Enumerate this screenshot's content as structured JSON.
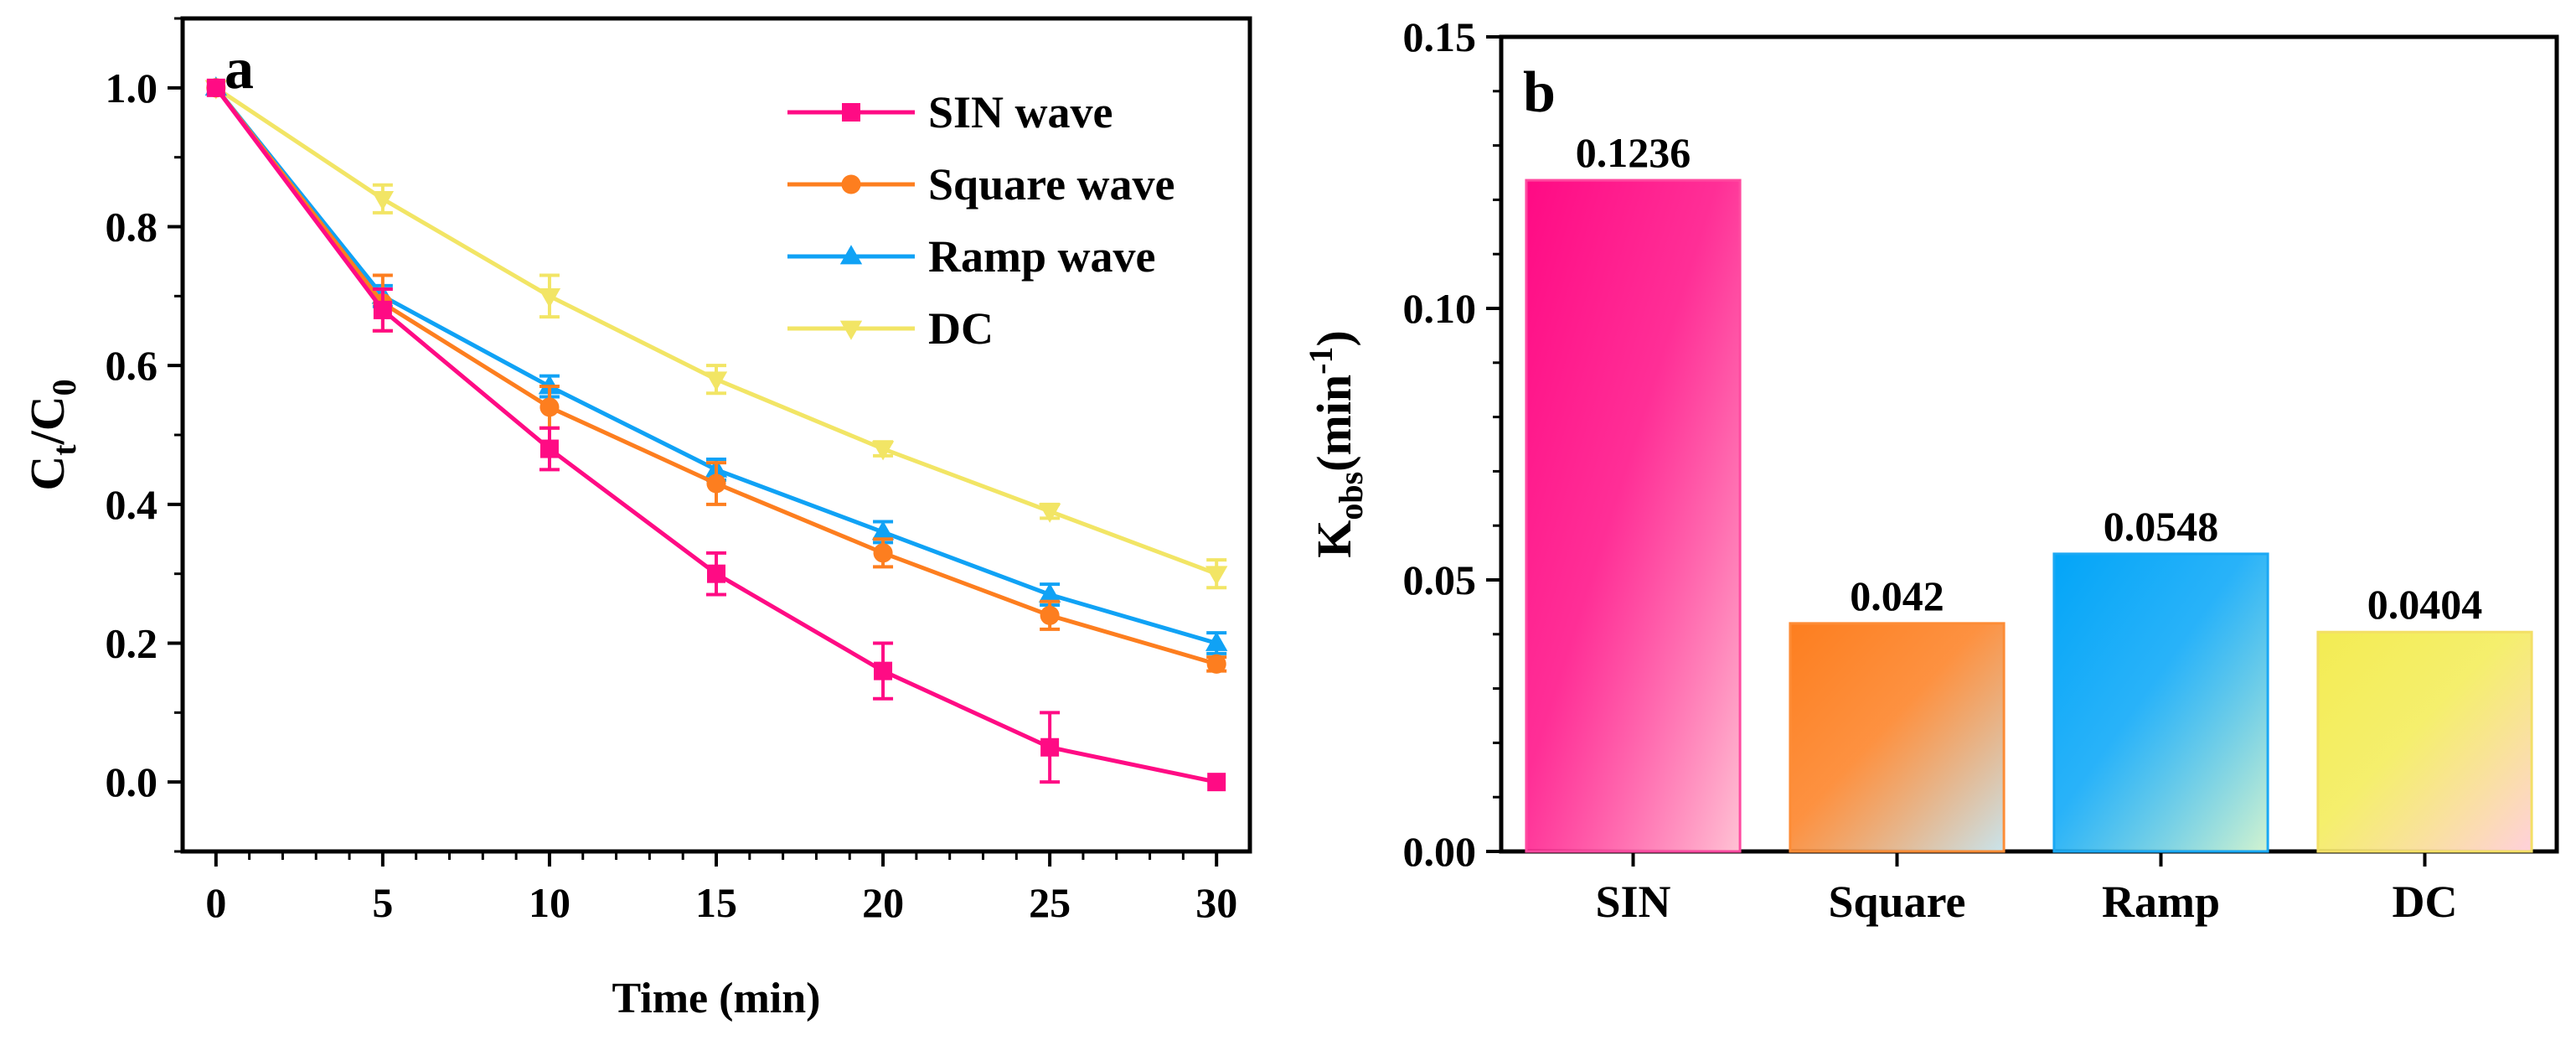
{
  "chart_data": [
    {
      "type": "line",
      "panel_label": "a",
      "xlabel": "Time (min)",
      "ylabel_main": "C",
      "ylabel_sub1": "t",
      "ylabel_slash": "/C",
      "ylabel_sub2": "0",
      "xlim": [
        -1,
        31
      ],
      "ylim": [
        -0.1,
        1.1
      ],
      "x": [
        0,
        5,
        10,
        15,
        20,
        25,
        30
      ],
      "xticks": [
        0,
        5,
        10,
        15,
        20,
        25,
        30
      ],
      "xtick_labels": [
        "0",
        "5",
        "10",
        "15",
        "20",
        "25",
        "30"
      ],
      "yticks": [
        0.0,
        0.2,
        0.4,
        0.6,
        0.8,
        1.0
      ],
      "ytick_labels": [
        "0.0",
        "0.2",
        "0.4",
        "0.6",
        "0.8",
        "1.0"
      ],
      "legend_position": "top-right",
      "series": [
        {
          "name": "SIN wave",
          "color": "#ff0b84",
          "marker": "square",
          "values": [
            1.0,
            0.68,
            0.48,
            0.3,
            0.16,
            0.05,
            0.0
          ],
          "errors": [
            0.0,
            0.03,
            0.03,
            0.03,
            0.04,
            0.05,
            0.0
          ]
        },
        {
          "name": "Square wave",
          "color": "#fd7e1f",
          "marker": "circle",
          "values": [
            1.0,
            0.69,
            0.54,
            0.43,
            0.33,
            0.24,
            0.17
          ],
          "errors": [
            0.0,
            0.04,
            0.03,
            0.03,
            0.02,
            0.02,
            0.01
          ]
        },
        {
          "name": "Ramp wave",
          "color": "#10a2f5",
          "marker": "triangle-up",
          "values": [
            1.0,
            0.7,
            0.57,
            0.45,
            0.36,
            0.27,
            0.2
          ],
          "errors": [
            0.0,
            0.015,
            0.015,
            0.015,
            0.015,
            0.015,
            0.015
          ]
        },
        {
          "name": "DC",
          "color": "#f2e565",
          "marker": "triangle-down",
          "values": [
            1.0,
            0.84,
            0.7,
            0.58,
            0.48,
            0.39,
            0.3
          ],
          "errors": [
            0.0,
            0.02,
            0.03,
            0.02,
            0.01,
            0.01,
            0.02
          ]
        }
      ]
    },
    {
      "type": "bar",
      "panel_label": "b",
      "ylabel_main": "K",
      "ylabel_sub": "obs",
      "ylabel_unit": "(min",
      "ylabel_sup": "-1",
      "ylabel_close": ")",
      "categories": [
        "SIN",
        "Square",
        "Ramp",
        "DC"
      ],
      "values": [
        0.1236,
        0.042,
        0.0548,
        0.0404
      ],
      "value_labels": [
        "0.1236",
        "0.042",
        "0.0548",
        "0.0404"
      ],
      "ylim": [
        0,
        0.15
      ],
      "yticks": [
        0.0,
        0.05,
        0.1,
        0.15
      ],
      "ytick_labels": [
        "0.00",
        "0.05",
        "0.10",
        "0.15"
      ],
      "colors": [
        [
          "#ff0a84",
          "#ffc2d4"
        ],
        [
          "#fd7e1f",
          "#c9e4ec"
        ],
        [
          "#03a5f8",
          "#d2f3d0"
        ],
        [
          "#f3ec53",
          "#ffd0dc"
        ]
      ],
      "edge_colors": [
        "#ff4aa0",
        "#fd8c36",
        "#1aa8f4",
        "#f3df66"
      ]
    }
  ]
}
